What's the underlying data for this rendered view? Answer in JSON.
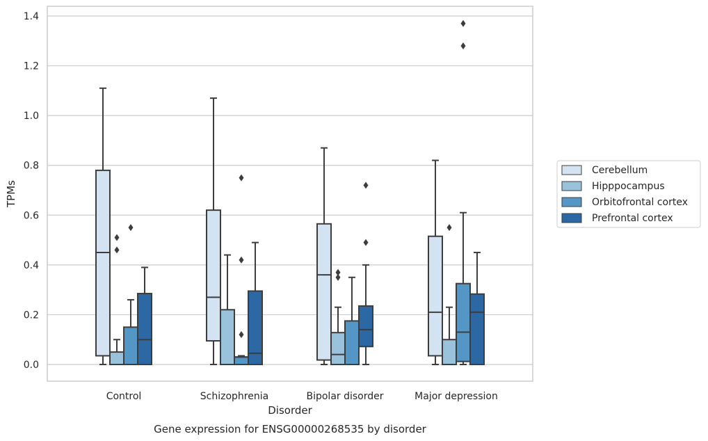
{
  "chart_data": {
    "type": "box",
    "title": "",
    "caption": "Gene expression for ENSG00000268535 by disorder",
    "xlabel": "Disorder",
    "ylabel": "TPMs",
    "ylim": [
      -0.065,
      1.44
    ],
    "yticks": [
      "0.0",
      "0.2",
      "0.4",
      "0.6",
      "0.8",
      "1.0",
      "1.2",
      "1.4"
    ],
    "grid": "horizontal",
    "legend_position": "right",
    "categories": [
      "Control",
      "Schizophrenia",
      "Bipolar disorder",
      "Major depression"
    ],
    "series": [
      {
        "name": "Cerebellum",
        "color": "#d4e3f2",
        "boxes": [
          {
            "min": 0.0,
            "q1": 0.035,
            "median": 0.45,
            "q3": 0.78,
            "max": 1.11,
            "outliers": []
          },
          {
            "min": 0.0,
            "q1": 0.095,
            "median": 0.27,
            "q3": 0.62,
            "max": 1.07,
            "outliers": []
          },
          {
            "min": 0.0,
            "q1": 0.018,
            "median": 0.36,
            "q3": 0.565,
            "max": 0.87,
            "outliers": []
          },
          {
            "min": 0.0,
            "q1": 0.035,
            "median": 0.21,
            "q3": 0.515,
            "max": 0.82,
            "outliers": []
          }
        ]
      },
      {
        "name": "Hipppocampus",
        "color": "#9bc2dc",
        "boxes": [
          {
            "min": 0.0,
            "q1": 0.0,
            "median": 0.0,
            "q3": 0.05,
            "max": 0.1,
            "outliers": [
              0.46,
              0.51
            ]
          },
          {
            "min": 0.0,
            "q1": 0.0,
            "median": 0.0,
            "q3": 0.22,
            "max": 0.44,
            "outliers": []
          },
          {
            "min": 0.0,
            "q1": 0.0,
            "median": 0.04,
            "q3": 0.128,
            "max": 0.23,
            "outliers": [
              0.35,
              0.37
            ]
          },
          {
            "min": 0.0,
            "q1": 0.0,
            "median": 0.0,
            "q3": 0.1,
            "max": 0.23,
            "outliers": [
              0.55
            ]
          }
        ]
      },
      {
        "name": "Orbitofrontal cortex",
        "color": "#5497c6",
        "boxes": [
          {
            "min": 0.0,
            "q1": 0.0,
            "median": 0.0,
            "q3": 0.15,
            "max": 0.26,
            "outliers": [
              0.55
            ]
          },
          {
            "min": 0.0,
            "q1": 0.0,
            "median": 0.03,
            "q3": 0.03,
            "max": 0.035,
            "outliers": [
              0.12,
              0.42,
              0.75
            ]
          },
          {
            "min": 0.0,
            "q1": 0.0,
            "median": 0.0,
            "q3": 0.175,
            "max": 0.35,
            "outliers": []
          },
          {
            "min": 0.0,
            "q1": 0.012,
            "median": 0.13,
            "q3": 0.325,
            "max": 0.61,
            "outliers": [
              1.28,
              1.37
            ]
          }
        ]
      },
      {
        "name": "Prefrontal cortex",
        "color": "#2c68a4",
        "boxes": [
          {
            "min": 0.0,
            "q1": 0.0,
            "median": 0.1,
            "q3": 0.285,
            "max": 0.39,
            "outliers": []
          },
          {
            "min": 0.0,
            "q1": 0.0,
            "median": 0.045,
            "q3": 0.295,
            "max": 0.49,
            "outliers": []
          },
          {
            "min": 0.0,
            "q1": 0.072,
            "median": 0.14,
            "q3": 0.235,
            "max": 0.4,
            "outliers": [
              0.49,
              0.72
            ]
          },
          {
            "min": 0.0,
            "q1": 0.0,
            "median": 0.21,
            "q3": 0.283,
            "max": 0.45,
            "outliers": []
          }
        ]
      }
    ]
  }
}
